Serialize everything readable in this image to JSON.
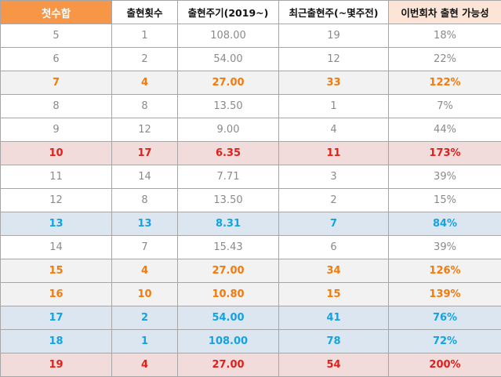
{
  "headers": [
    "첫수합",
    "출현횟수",
    "출현주기(2019~)",
    "최근출현주(~몇주전)",
    "이번회차 출현 가능성"
  ],
  "rows": [
    {
      "cells": [
        "5",
        "1",
        "108.00",
        "19",
        "18%"
      ],
      "bg": "plain",
      "text": "gray"
    },
    {
      "cells": [
        "6",
        "2",
        "54.00",
        "12",
        "22%"
      ],
      "bg": "plain",
      "text": "gray"
    },
    {
      "cells": [
        "7",
        "4",
        "27.00",
        "33",
        "122%"
      ],
      "bg": "gray",
      "text": "orange"
    },
    {
      "cells": [
        "8",
        "8",
        "13.50",
        "1",
        "7%"
      ],
      "bg": "plain",
      "text": "gray"
    },
    {
      "cells": [
        "9",
        "12",
        "9.00",
        "4",
        "44%"
      ],
      "bg": "plain",
      "text": "gray"
    },
    {
      "cells": [
        "10",
        "17",
        "6.35",
        "11",
        "173%"
      ],
      "bg": "pink",
      "text": "red"
    },
    {
      "cells": [
        "11",
        "14",
        "7.71",
        "3",
        "39%"
      ],
      "bg": "plain",
      "text": "gray"
    },
    {
      "cells": [
        "12",
        "8",
        "13.50",
        "2",
        "15%"
      ],
      "bg": "plain",
      "text": "gray"
    },
    {
      "cells": [
        "13",
        "13",
        "8.31",
        "7",
        "84%"
      ],
      "bg": "blue",
      "text": "blue"
    },
    {
      "cells": [
        "14",
        "7",
        "15.43",
        "6",
        "39%"
      ],
      "bg": "plain",
      "text": "gray"
    },
    {
      "cells": [
        "15",
        "4",
        "27.00",
        "34",
        "126%"
      ],
      "bg": "gray",
      "text": "orange"
    },
    {
      "cells": [
        "16",
        "10",
        "10.80",
        "15",
        "139%"
      ],
      "bg": "gray",
      "text": "orange"
    },
    {
      "cells": [
        "17",
        "2",
        "54.00",
        "41",
        "76%"
      ],
      "bg": "blue",
      "text": "blue"
    },
    {
      "cells": [
        "18",
        "1",
        "108.00",
        "78",
        "72%"
      ],
      "bg": "blue",
      "text": "blue"
    },
    {
      "cells": [
        "19",
        "4",
        "27.00",
        "54",
        "200%"
      ],
      "bg": "pink",
      "text": "red"
    }
  ],
  "colors": {
    "header_first_bg": "#f79646",
    "header_last_bg": "#fce4d6",
    "orange_text": "#f47a0c",
    "red_text": "#e0201a",
    "blue_text": "#12a3e0",
    "gray_text": "#8a8a8a",
    "gray_bg": "#f2f2f2",
    "pink_bg": "#f2dcdb",
    "blue_bg": "#dce6f1"
  }
}
